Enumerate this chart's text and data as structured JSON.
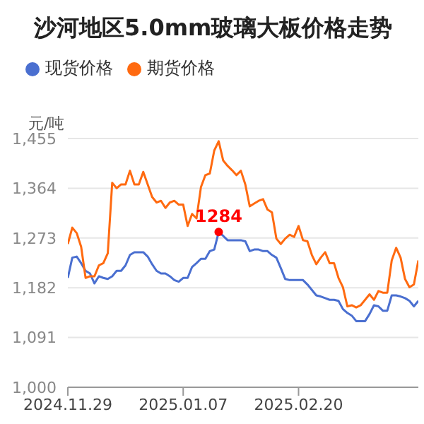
{
  "chart_data": {
    "type": "line",
    "title": "沙河地区5.0mm玻璃大板价格走势",
    "ylabel": "元/吨",
    "categories": [
      "2024.11.29",
      null,
      null,
      null,
      null,
      null,
      null,
      null,
      null,
      null,
      null,
      null,
      null,
      null,
      null,
      null,
      null,
      null,
      null,
      null,
      null,
      null,
      null,
      null,
      null,
      null,
      "2025.01.07",
      null,
      null,
      null,
      null,
      null,
      null,
      null,
      null,
      null,
      null,
      null,
      null,
      null,
      null,
      null,
      null,
      null,
      null,
      null,
      null,
      null,
      null,
      null,
      null,
      null,
      "2025.02.20",
      null,
      null,
      null,
      null,
      null,
      null,
      null,
      null,
      null,
      null,
      null,
      null,
      null,
      null,
      null,
      null,
      null,
      null,
      null,
      null,
      null,
      null,
      null,
      null,
      null,
      null,
      null
    ],
    "series": [
      {
        "name": "现货价格",
        "color": "#4a6fd0",
        "values": [
          1200,
          1237,
          1239,
          1227,
          1213,
          1208,
          1190,
          1203,
          1200,
          1198,
          1203,
          1213,
          1213,
          1223,
          1242,
          1247,
          1247,
          1247,
          1239,
          1225,
          1213,
          1208,
          1208,
          1203,
          1196,
          1193,
          1200,
          1200,
          1220,
          1227,
          1235,
          1235,
          1249,
          1252,
          1284,
          1277,
          1269,
          1269,
          1269,
          1269,
          1267,
          1249,
          1252,
          1252,
          1249,
          1249,
          1242,
          1237,
          1218,
          1198,
          1196,
          1196,
          1196,
          1196,
          1188,
          1178,
          1168,
          1166,
          1163,
          1160,
          1160,
          1158,
          1143,
          1136,
          1131,
          1121,
          1121,
          1121,
          1134,
          1150,
          1148,
          1140,
          1140,
          1168,
          1168,
          1166,
          1163,
          1158,
          1148,
          1158
        ],
        "value_labels": [
          null,
          null,
          null,
          null,
          null,
          null,
          null,
          null,
          null,
          null,
          null,
          null,
          null,
          null,
          null,
          null,
          null,
          null,
          null,
          null,
          null,
          null,
          null,
          null,
          null,
          null,
          null,
          null,
          null,
          null,
          null,
          null,
          null,
          null,
          "1284",
          null,
          null,
          null,
          null,
          null,
          null,
          null,
          null,
          null,
          null,
          null,
          null,
          null,
          null,
          null,
          null,
          null,
          null,
          null,
          null,
          null,
          null,
          null,
          null,
          null,
          null,
          null,
          null,
          null,
          null,
          null,
          null,
          null,
          null,
          null,
          null,
          null,
          null,
          null,
          null,
          null,
          null,
          null,
          null,
          null
        ]
      },
      {
        "name": "期货价格",
        "color": "#ff6a10",
        "values": [
          1262,
          1292,
          1282,
          1257,
          1200,
          1203,
          1203,
          1223,
          1227,
          1245,
          1374,
          1364,
          1371,
          1371,
          1396,
          1371,
          1371,
          1394,
          1371,
          1348,
          1338,
          1341,
          1328,
          1338,
          1341,
          1334,
          1334,
          1295,
          1317,
          1309,
          1366,
          1388,
          1391,
          1433,
          1450,
          1415,
          1405,
          1397,
          1388,
          1396,
          1371,
          1331,
          1336,
          1341,
          1344,
          1325,
          1320,
          1272,
          1262,
          1272,
          1279,
          1275,
          1295,
          1269,
          1267,
          1242,
          1225,
          1237,
          1247,
          1227,
          1227,
          1200,
          1183,
          1148,
          1150,
          1146,
          1150,
          1160,
          1170,
          1160,
          1176,
          1173,
          1173,
          1232,
          1255,
          1237,
          1198,
          1183,
          1188,
          1232
        ]
      }
    ],
    "ylim": [
      1000,
      1455
    ],
    "yticks": [
      {
        "value": 1000,
        "label": "1,000"
      },
      {
        "value": 1091,
        "label": "1,091"
      },
      {
        "value": 1182,
        "label": "1,182"
      },
      {
        "value": 1273,
        "label": "1,273"
      },
      {
        "value": 1364,
        "label": "1,364"
      },
      {
        "value": 1455,
        "label": "1,455"
      }
    ],
    "grid": "y",
    "legend": "top left",
    "marker": "none",
    "line_style": "solid"
  }
}
